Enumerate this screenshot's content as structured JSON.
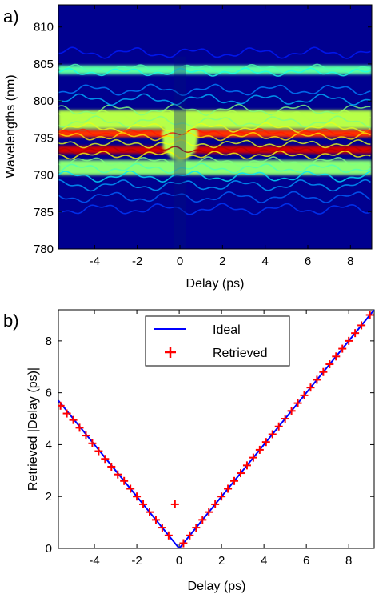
{
  "chart_data": [
    {
      "type": "heatmap",
      "panel_label": "a)",
      "xlabel": "Delay (ps)",
      "ylabel": "Wavelengths (nm)",
      "xlim": [
        -5.7,
        9.0
      ],
      "ylim": [
        780,
        813
      ],
      "xticks": [
        -4,
        -2,
        0,
        2,
        4,
        6,
        8
      ],
      "yticks": [
        780,
        785,
        790,
        795,
        800,
        805,
        810
      ],
      "xtick_labels": [
        "-4",
        "-2",
        "0",
        "2",
        "4",
        "6",
        "8"
      ],
      "ytick_labels": [
        "780",
        "785",
        "790",
        "795",
        "800",
        "805",
        "810"
      ],
      "colormap": "jet",
      "colors": {
        "background": "#00008f",
        "low": "#0000ff",
        "mid": "#00ffff",
        "high": "#ffff00",
        "peak": "#ff0000"
      },
      "bands": [
        {
          "center_nm": 804.2,
          "width_nm": 1.2,
          "intensity": 0.35
        },
        {
          "center_nm": 797.5,
          "width_nm": 2.5,
          "intensity": 0.45
        },
        {
          "center_nm": 795.6,
          "width_nm": 1.0,
          "intensity": 0.75
        },
        {
          "center_nm": 793.4,
          "width_nm": 1.0,
          "intensity": 0.85
        },
        {
          "center_nm": 791.0,
          "width_nm": 2.0,
          "intensity": 0.4
        }
      ]
    },
    {
      "type": "line",
      "panel_label": "b)",
      "xlabel": "Delay (ps)",
      "ylabel": "Retrieved |Delay (ps)|",
      "xlim": [
        -5.7,
        9.2
      ],
      "ylim": [
        0,
        9.2
      ],
      "xticks": [
        -4,
        -2,
        0,
        2,
        4,
        6,
        8
      ],
      "yticks": [
        0,
        2,
        4,
        6,
        8
      ],
      "xtick_labels": [
        "-4",
        "-2",
        "0",
        "2",
        "4",
        "6",
        "8"
      ],
      "ytick_labels": [
        "0",
        "2",
        "4",
        "6",
        "8"
      ],
      "legend_position": "top-center",
      "series": [
        {
          "name": "Ideal",
          "style": "line",
          "color": "#0000ff",
          "x": [
            -5.7,
            0,
            9.2
          ],
          "y": [
            5.7,
            0,
            9.2
          ]
        },
        {
          "name": "Retrieved",
          "style": "plus-markers",
          "color": "#ff0000",
          "x": [
            -5.6,
            -5.3,
            -5.0,
            -4.7,
            -4.4,
            -4.1,
            -3.8,
            -3.5,
            -3.2,
            -2.9,
            -2.6,
            -2.3,
            -2.0,
            -1.7,
            -1.4,
            -1.1,
            -0.8,
            -0.5,
            -0.2,
            0.2,
            0.5,
            0.8,
            1.1,
            1.4,
            1.7,
            2.0,
            2.3,
            2.6,
            2.9,
            3.2,
            3.5,
            3.8,
            4.1,
            4.4,
            4.7,
            5.0,
            5.3,
            5.6,
            5.9,
            6.2,
            6.5,
            6.8,
            7.1,
            7.4,
            7.7,
            8.0,
            8.3,
            8.6,
            9.0
          ],
          "y": [
            5.5,
            5.2,
            4.95,
            4.65,
            4.35,
            4.05,
            3.75,
            3.45,
            3.15,
            2.85,
            2.6,
            2.3,
            2.0,
            1.7,
            1.4,
            1.1,
            0.8,
            0.5,
            1.7,
            0.2,
            0.5,
            0.8,
            1.1,
            1.4,
            1.7,
            2.0,
            2.3,
            2.6,
            2.9,
            3.2,
            3.5,
            3.8,
            4.1,
            4.4,
            4.7,
            5.0,
            5.3,
            5.6,
            5.9,
            6.2,
            6.5,
            6.8,
            7.1,
            7.4,
            7.7,
            8.0,
            8.3,
            8.6,
            9.0
          ]
        }
      ]
    }
  ]
}
